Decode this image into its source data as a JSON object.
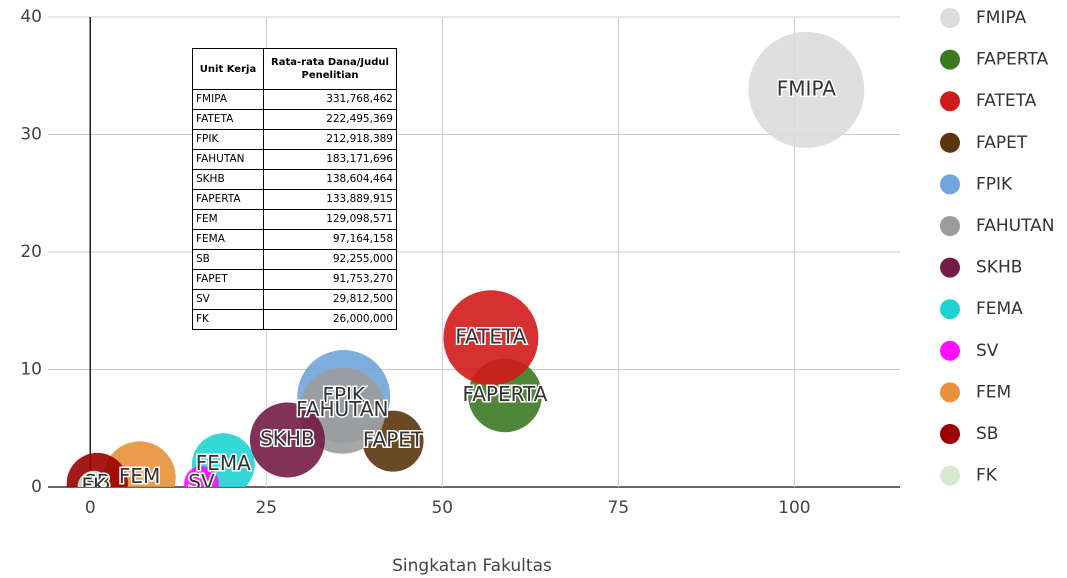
{
  "chart_data": {
    "type": "bubble",
    "xlabel": "Singkatan Fakultas",
    "xlim": [
      -6,
      115
    ],
    "xticks": [
      0,
      25,
      50,
      75,
      100
    ],
    "ylim": [
      0,
      40
    ],
    "yticks": [
      0,
      10,
      20,
      30,
      40
    ],
    "grid": true,
    "legend": "right",
    "series": [
      {
        "name": "FMIPA",
        "color": "#dcdcdc",
        "x": [
          101.7
        ],
        "values": [
          33.8
        ],
        "sizes": [
          331768462
        ]
      },
      {
        "name": "FAPERTA",
        "color": "#3b7a22",
        "x": [
          58.9
        ],
        "values": [
          7.8
        ],
        "sizes": [
          133889915
        ]
      },
      {
        "name": "FATETA",
        "color": "#d11a1a",
        "x": [
          56.9
        ],
        "values": [
          12.7
        ],
        "sizes": [
          222495369
        ]
      },
      {
        "name": "FAPET",
        "color": "#5b3510",
        "x": [
          43
        ],
        "values": [
          3.9
        ],
        "sizes": [
          91753270
        ]
      },
      {
        "name": "FPIK",
        "color": "#6fa5dc",
        "x": [
          36
        ],
        "values": [
          7.7
        ],
        "sizes": [
          212918389
        ]
      },
      {
        "name": "FAHUTAN",
        "color": "#9c9c9c",
        "x": [
          35.8
        ],
        "values": [
          6.5
        ],
        "sizes": [
          183171696
        ]
      },
      {
        "name": "SKHB",
        "color": "#741b47",
        "x": [
          28
        ],
        "values": [
          4
        ],
        "sizes": [
          138604464
        ]
      },
      {
        "name": "FEMA",
        "color": "#1ed4d2",
        "x": [
          18.9
        ],
        "values": [
          1.9
        ],
        "sizes": [
          97164158
        ]
      },
      {
        "name": "SV",
        "color": "#ff10ff",
        "x": [
          15.8
        ],
        "values": [
          0.3
        ],
        "sizes": [
          29812500
        ]
      },
      {
        "name": "FEM",
        "color": "#e8913a",
        "x": [
          7
        ],
        "values": [
          0.8
        ],
        "sizes": [
          129098571
        ]
      },
      {
        "name": "SB",
        "color": "#9a0000",
        "x": [
          1
        ],
        "values": [
          0.3
        ],
        "sizes": [
          92255000
        ]
      },
      {
        "name": "FK",
        "color": "#d5ead0",
        "x": [
          0.5
        ],
        "values": [
          0
        ],
        "sizes": [
          26000000
        ]
      }
    ]
  },
  "table": {
    "headers": [
      "Unit Kerja",
      "Rata-rata Dana/Judul Penelitian"
    ],
    "rows": [
      [
        "FMIPA",
        "331,768,462"
      ],
      [
        "FATETA",
        "222,495,369"
      ],
      [
        "FPIK",
        "212,918,389"
      ],
      [
        "FAHUTAN",
        "183,171,696"
      ],
      [
        "SKHB",
        "138,604,464"
      ],
      [
        "FAPERTA",
        "133,889,915"
      ],
      [
        "FEM",
        "129,098,571"
      ],
      [
        "FEMA",
        "97,164,158"
      ],
      [
        "SB",
        "92,255,000"
      ],
      [
        "FAPET",
        "91,753,270"
      ],
      [
        "SV",
        "29,812,500"
      ],
      [
        "FK",
        "26,000,000"
      ]
    ]
  }
}
